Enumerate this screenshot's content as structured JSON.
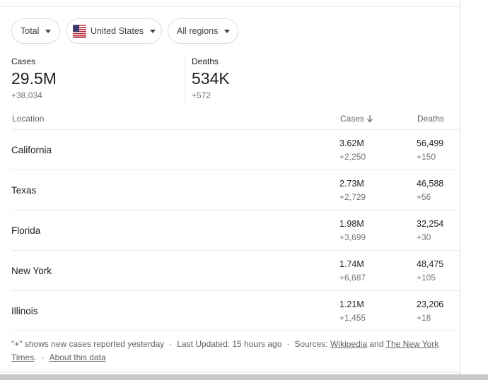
{
  "filters": {
    "metric": "Total",
    "country": "United States",
    "region": "All regions"
  },
  "summary": {
    "cases": {
      "label": "Cases",
      "value": "29.5M",
      "delta": "+38,034"
    },
    "deaths": {
      "label": "Deaths",
      "value": "534K",
      "delta": "+572"
    }
  },
  "table": {
    "headers": {
      "location": "Location",
      "cases": "Cases",
      "deaths": "Deaths"
    },
    "rows": [
      {
        "location": "California",
        "cases": "3.62M",
        "cases_delta": "+2,250",
        "deaths": "56,499",
        "deaths_delta": "+150"
      },
      {
        "location": "Texas",
        "cases": "2.73M",
        "cases_delta": "+2,729",
        "deaths": "46,588",
        "deaths_delta": "+56"
      },
      {
        "location": "Florida",
        "cases": "1.98M",
        "cases_delta": "+3,699",
        "deaths": "32,254",
        "deaths_delta": "+30"
      },
      {
        "location": "New York",
        "cases": "1.74M",
        "cases_delta": "+6,687",
        "deaths": "48,475",
        "deaths_delta": "+105"
      },
      {
        "location": "Illinois",
        "cases": "1.21M",
        "cases_delta": "+1,455",
        "deaths": "23,206",
        "deaths_delta": "+18"
      }
    ]
  },
  "footer": {
    "note": "\"+\" shows new cases reported yesterday",
    "dot": "·",
    "updated": "Last Updated: 15 hours ago",
    "sources_prefix": "Sources:",
    "source1": "Wikipedia",
    "and": "and",
    "source2": "The New York Times",
    "period": ".",
    "about": "About this data"
  },
  "icons": {
    "flag": "us-flag-icon",
    "dropdown": "caret-down-icon",
    "sort": "arrow-down-icon"
  }
}
